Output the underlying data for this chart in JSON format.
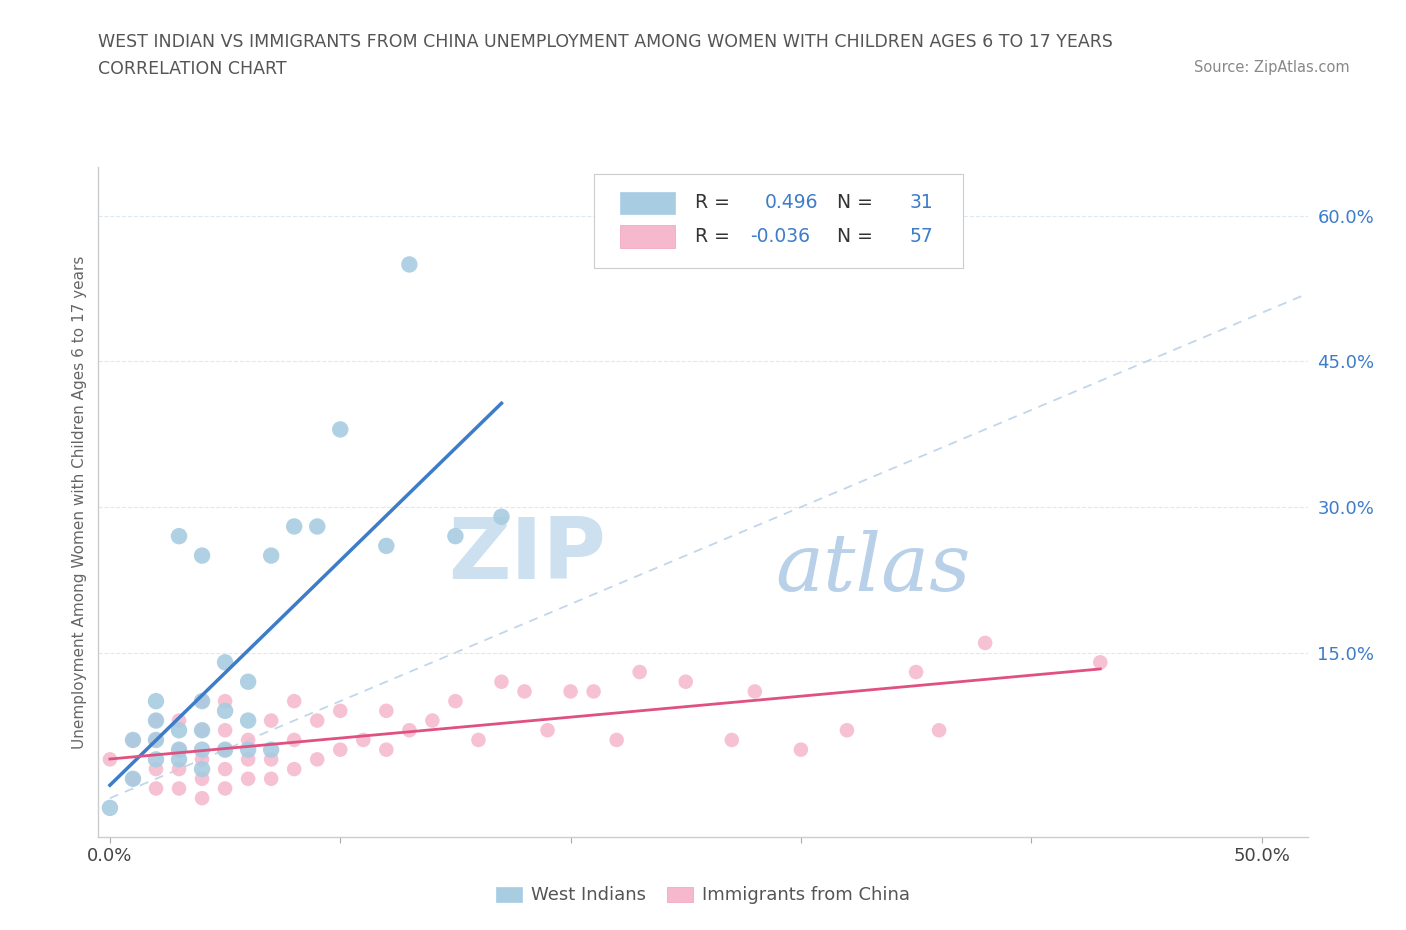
{
  "title_line1": "WEST INDIAN VS IMMIGRANTS FROM CHINA UNEMPLOYMENT AMONG WOMEN WITH CHILDREN AGES 6 TO 17 YEARS",
  "title_line2": "CORRELATION CHART",
  "source_text": "Source: ZipAtlas.com",
  "ylabel": "Unemployment Among Women with Children Ages 6 to 17 years",
  "xlim": [
    -0.005,
    0.52
  ],
  "ylim": [
    -0.04,
    0.65
  ],
  "xtick_positions": [
    0.0,
    0.1,
    0.2,
    0.3,
    0.4,
    0.5
  ],
  "xticklabels": [
    "0.0%",
    "",
    "",
    "",
    "",
    "50.0%"
  ],
  "ytick_positions": [
    0.15,
    0.3,
    0.45,
    0.6
  ],
  "ytick_labels": [
    "15.0%",
    "30.0%",
    "45.0%",
    "60.0%"
  ],
  "legend_label1": "West Indians",
  "legend_label2": "Immigrants from China",
  "color_west_indian": "#a8cce0",
  "color_china": "#f5b8cc",
  "color_west_indian_line": "#3d7cc9",
  "color_china_line": "#e05080",
  "color_diag": "#b8cfe8",
  "watermark_zip": "ZIP",
  "watermark_atlas": "atlas",
  "watermark_color_zip": "#ccdff0",
  "watermark_color_atlas": "#b8d4e8",
  "background_color": "#ffffff",
  "grid_color": "#dde8f0",
  "r1": "0.496",
  "n1": "31",
  "r2": "-0.036",
  "n2": "57",
  "west_indian_x": [
    0.0,
    0.01,
    0.01,
    0.02,
    0.02,
    0.02,
    0.02,
    0.03,
    0.03,
    0.03,
    0.03,
    0.04,
    0.04,
    0.04,
    0.04,
    0.04,
    0.05,
    0.05,
    0.05,
    0.06,
    0.06,
    0.06,
    0.07,
    0.07,
    0.08,
    0.09,
    0.1,
    0.12,
    0.13,
    0.15,
    0.17
  ],
  "west_indian_y": [
    -0.01,
    0.02,
    0.06,
    0.04,
    0.06,
    0.08,
    0.1,
    0.04,
    0.05,
    0.07,
    0.27,
    0.03,
    0.05,
    0.07,
    0.1,
    0.25,
    0.05,
    0.09,
    0.14,
    0.05,
    0.08,
    0.12,
    0.05,
    0.25,
    0.28,
    0.28,
    0.38,
    0.26,
    0.55,
    0.27,
    0.29
  ],
  "china_x": [
    0.0,
    0.01,
    0.01,
    0.02,
    0.02,
    0.02,
    0.02,
    0.03,
    0.03,
    0.03,
    0.03,
    0.04,
    0.04,
    0.04,
    0.04,
    0.04,
    0.05,
    0.05,
    0.05,
    0.05,
    0.05,
    0.06,
    0.06,
    0.06,
    0.07,
    0.07,
    0.07,
    0.08,
    0.08,
    0.08,
    0.09,
    0.09,
    0.1,
    0.1,
    0.11,
    0.12,
    0.12,
    0.13,
    0.14,
    0.15,
    0.16,
    0.17,
    0.18,
    0.19,
    0.2,
    0.21,
    0.22,
    0.23,
    0.25,
    0.27,
    0.28,
    0.3,
    0.32,
    0.35,
    0.36,
    0.38,
    0.43
  ],
  "china_y": [
    0.04,
    0.02,
    0.06,
    0.01,
    0.03,
    0.06,
    0.08,
    0.01,
    0.03,
    0.05,
    0.08,
    0.0,
    0.02,
    0.04,
    0.07,
    0.1,
    0.01,
    0.03,
    0.05,
    0.07,
    0.1,
    0.02,
    0.04,
    0.06,
    0.02,
    0.04,
    0.08,
    0.03,
    0.06,
    0.1,
    0.04,
    0.08,
    0.05,
    0.09,
    0.06,
    0.05,
    0.09,
    0.07,
    0.08,
    0.1,
    0.06,
    0.12,
    0.11,
    0.07,
    0.11,
    0.11,
    0.06,
    0.13,
    0.12,
    0.06,
    0.11,
    0.05,
    0.07,
    0.13,
    0.07,
    0.16,
    0.14
  ]
}
